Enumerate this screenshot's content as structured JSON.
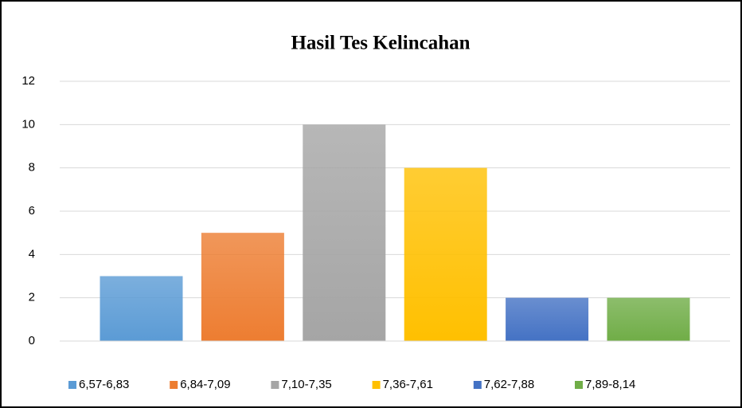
{
  "chart_data": {
    "type": "bar",
    "title": "Hasil Tes Kelincahan",
    "categories": [
      null
    ],
    "series": [
      {
        "name": "6,57-6,83",
        "color": "#5b9bd5",
        "values": [
          3
        ]
      },
      {
        "name": "6,84-7,09",
        "color": "#ed7d31",
        "values": [
          5
        ]
      },
      {
        "name": "7,10-7,35",
        "color": "#a5a5a5",
        "values": [
          10
        ]
      },
      {
        "name": "7,36-7,61",
        "color": "#ffc000",
        "values": [
          8
        ]
      },
      {
        "name": "7,62-7,88",
        "color": "#4472c4",
        "values": [
          2
        ]
      },
      {
        "name": "7,89-8,14",
        "color": "#70ad47",
        "values": [
          2
        ]
      }
    ],
    "ylim": [
      0,
      12
    ],
    "yticks": [
      0,
      2,
      4,
      6,
      8,
      10,
      12
    ],
    "grid": true,
    "legend": "bottom"
  }
}
